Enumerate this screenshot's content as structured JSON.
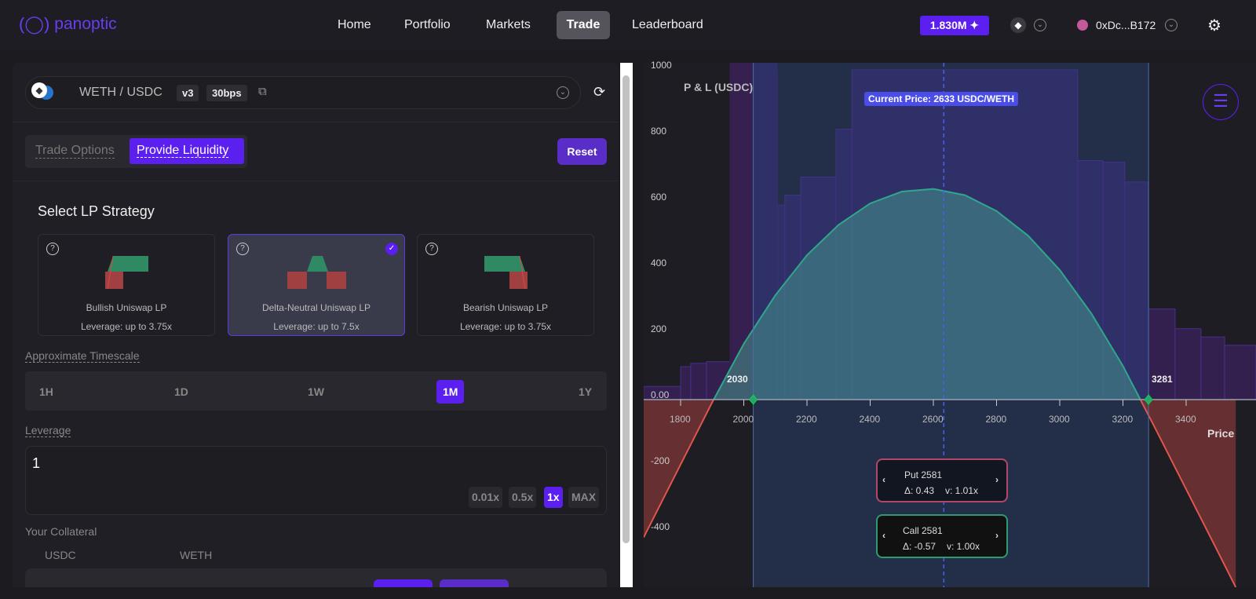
{
  "header": {
    "logo_text": "panoptic",
    "nav": [
      "Home",
      "Portfolio",
      "Markets",
      "Trade",
      "Leaderboard"
    ],
    "active_nav": "Trade",
    "points": "1.830M",
    "wallet": "0xDc...B172",
    "accent": "#5b1ff0"
  },
  "pool": {
    "pair": "WETH / USDC",
    "version": "v3",
    "fee": "30bps"
  },
  "mode_tabs": [
    "Trade Options",
    "Provide Liquidity"
  ],
  "active_mode": "Provide Liquidity",
  "reset_label": "Reset",
  "strategy": {
    "title": "Select LP Strategy",
    "cards": [
      {
        "name": "Bullish Uniswap LP",
        "leverage": "Leverage: up to 3.75x",
        "selected": false
      },
      {
        "name": "Delta-Neutral Uniswap LP",
        "leverage": "Leverage: up to 7.5x",
        "selected": true
      },
      {
        "name": "Bearish Uniswap LP",
        "leverage": "Leverage: up to 3.75x",
        "selected": false
      }
    ]
  },
  "timescale": {
    "label": "Approximate Timescale",
    "options": [
      "1H",
      "1D",
      "1W",
      "1M",
      "1Y"
    ],
    "selected": "1M"
  },
  "leverage": {
    "label": "Leverage",
    "value": "1",
    "presets": [
      "0.01x",
      "0.5x",
      "1x",
      "MAX"
    ],
    "selected": "1x"
  },
  "collateral": {
    "label": "Your Collateral",
    "tokens": [
      "USDC",
      "WETH"
    ]
  },
  "chart": {
    "ylabel": "P & L (USDC)",
    "xlabel": "Price",
    "current_price_label": "Current Price: 2633 USDC/WETH",
    "range_low_label": "2030",
    "range_high_label": "3281",
    "tooltips": [
      {
        "title": "Put 2581",
        "delta": "Δ: 0.43",
        "v": "v: 1.01x",
        "color": "#b2476b"
      },
      {
        "title": "Call 2581",
        "delta": "Δ: -0.57",
        "v": "v: 1.00x",
        "color": "#2f9a6e"
      }
    ]
  },
  "chart_data": {
    "type": "line",
    "xlabel": "Price",
    "ylabel": "P & L (USDC)",
    "xlim": [
      1683,
      3621
    ],
    "ylim": [
      -570,
      1000
    ],
    "x_ticks": [
      1800,
      2000,
      2200,
      2400,
      2600,
      2800,
      3000,
      3200,
      3400
    ],
    "y_ticks": [
      -400,
      -200,
      0,
      200,
      400,
      600,
      800,
      1000
    ],
    "y_tick_labels": [
      "-400",
      "-200",
      "0.00",
      "200",
      "400",
      "600",
      "800",
      "1000"
    ],
    "current_price": 2633,
    "range": [
      2030,
      3281
    ],
    "pnl": {
      "x": [
        1683,
        1800,
        1900,
        2000,
        2100,
        2200,
        2300,
        2400,
        2500,
        2600,
        2700,
        2800,
        2900,
        3000,
        3100,
        3200,
        3300,
        3400,
        3500,
        3640
      ],
      "y": [
        -418,
        -197,
        -8,
        169,
        317,
        438,
        530,
        595,
        631,
        639,
        620,
        572,
        497,
        393,
        261,
        102,
        -83,
        -272,
        -461,
        -726
      ]
    },
    "liquidity_steps": [
      [
        1683,
        1800,
        40
      ],
      [
        1800,
        1832,
        100
      ],
      [
        1832,
        1882,
        110
      ],
      [
        1882,
        1957,
        115
      ],
      [
        1957,
        2106,
        1000
      ],
      [
        2106,
        2130,
        590
      ],
      [
        2130,
        2180,
        620
      ],
      [
        2180,
        2292,
        675
      ],
      [
        2292,
        2342,
        820
      ],
      [
        2342,
        3057,
        1000
      ],
      [
        3057,
        3137,
        725
      ],
      [
        3137,
        3206,
        720
      ],
      [
        3206,
        3281,
        660
      ],
      [
        3281,
        3365,
        275
      ],
      [
        3365,
        3447,
        215
      ],
      [
        3447,
        3522,
        190
      ],
      [
        3522,
        3621,
        165
      ]
    ],
    "colors": {
      "profit": "#2fa78a",
      "loss": "#e0564a",
      "liquidity": "#34204f",
      "in_range": "#2f3068"
    }
  }
}
